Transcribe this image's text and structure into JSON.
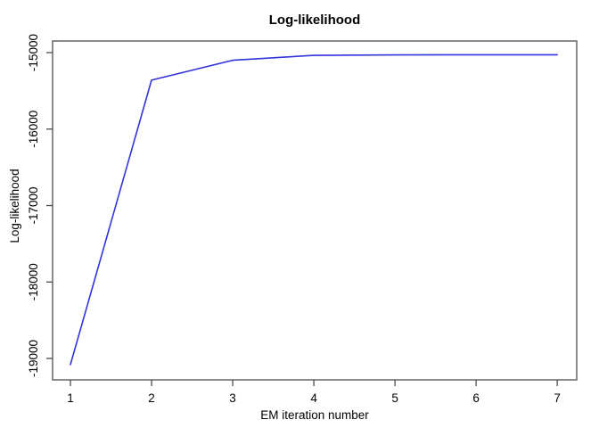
{
  "chart_data": {
    "type": "line",
    "title": "Log-likelihood",
    "xlabel": "EM iteration number",
    "ylabel": "Log-likelihood",
    "series": [
      {
        "name": "log-likelihood",
        "x": [
          1,
          2,
          3,
          4,
          5,
          6,
          7
        ],
        "y": [
          -19080,
          -15360,
          -15100,
          -15036,
          -15030,
          -15028,
          -15028
        ]
      }
    ],
    "xticks": [
      1,
      2,
      3,
      4,
      5,
      6,
      7
    ],
    "yticks": [
      -15000,
      -16000,
      -17000,
      -18000,
      -19000
    ],
    "xlim": [
      0.78,
      7.24
    ],
    "ylim": [
      -19280,
      -14848
    ],
    "grid": false,
    "legend": "none",
    "line_color": "#3333dd",
    "axis_color": "#4d4d4d",
    "tick_color": "#4d4d4d",
    "text_color": "#000000",
    "background_color": "#ffffff"
  }
}
